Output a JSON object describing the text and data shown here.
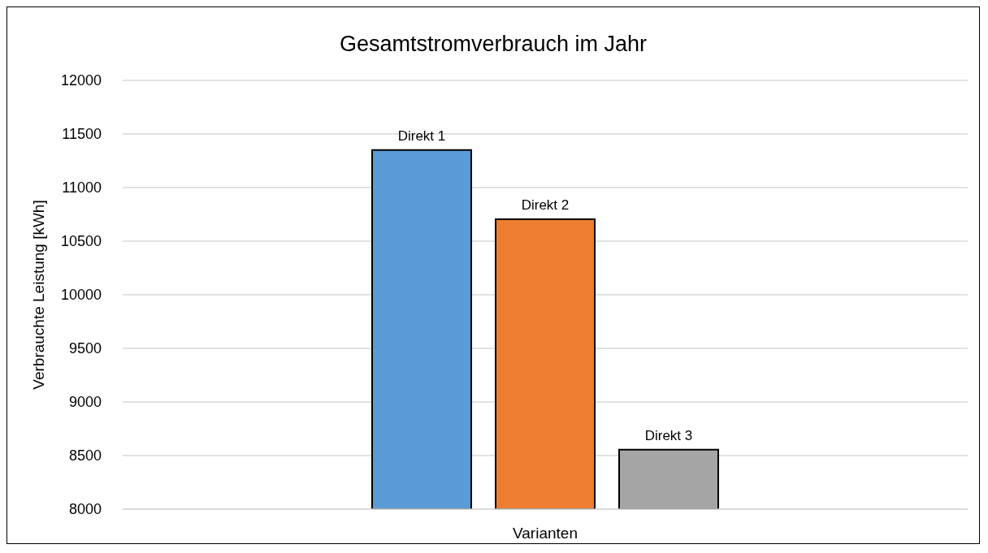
{
  "chart_data": {
    "type": "bar",
    "title": "Gesamtstromverbrauch im Jahr",
    "xlabel": "Varianten",
    "ylabel": "Verbrauchte Leistung [kWh]",
    "categories": [
      null
    ],
    "series": [
      {
        "name": "Direkt 1",
        "color": "#5b9bd5",
        "values": [
          11350
        ]
      },
      {
        "name": "Direkt 2",
        "color": "#ed7d31",
        "values": [
          10705
        ]
      },
      {
        "name": "Direkt 3",
        "color": "#a5a5a5",
        "values": [
          8555
        ]
      }
    ],
    "ylim": [
      8000,
      12000
    ],
    "yticks": [
      8000,
      8500,
      9000,
      9500,
      10000,
      10500,
      11000,
      11500,
      12000
    ],
    "grid": "y",
    "legend": false
  }
}
